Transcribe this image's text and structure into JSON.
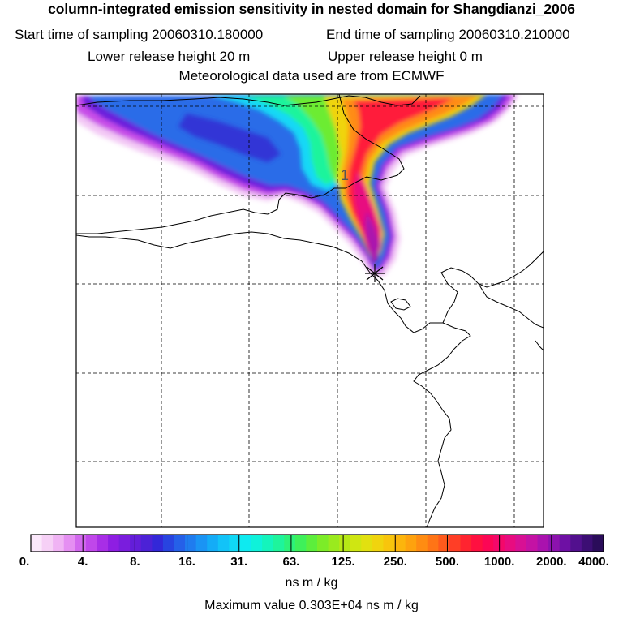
{
  "titles": {
    "line1": "column-integrated emission sensitivity in nested domain for Shangdianzi_2006",
    "start_label": "Start time of sampling 20060310.180000",
    "end_label": "End time of sampling 20060310.210000",
    "lower_label": "Lower release height   20 m",
    "upper_label": "Upper release height    0 m",
    "met_label": "Meteorological data used are from ECMWF"
  },
  "map": {
    "marker_label": "1",
    "colors": {
      "frame": "#000000",
      "coast": "#000000",
      "grid": "#000000"
    }
  },
  "colorbar": {
    "ticks": [
      "0.",
      "4.",
      "8.",
      "16.",
      "31.",
      "63.",
      "125.",
      "250.",
      "500.",
      "1000.",
      "2000.",
      "4000."
    ],
    "swatches": [
      "#fbe8fb",
      "#f6d0f6",
      "#f0b3f4",
      "#e58ff2",
      "#d268ee",
      "#c047ea",
      "#a82ee6",
      "#8e1ee2",
      "#7a1ddd",
      "#631ed9",
      "#4c22d6",
      "#3328d8",
      "#2844e0",
      "#2560e8",
      "#1f7cef",
      "#1a94f4",
      "#14acf7",
      "#12c3f8",
      "#10d8f6",
      "#0eeaf0",
      "#0ff2da",
      "#14f4bc",
      "#1ef49c",
      "#2cf27a",
      "#3ef05a",
      "#5cee3c",
      "#7cec28",
      "#9aea1e",
      "#b6e816",
      "#cfe612",
      "#e2e010",
      "#f0d40e",
      "#f8c50c",
      "#fcb50c",
      "#fea20e",
      "#ff8c12",
      "#ff7416",
      "#ff5a1c",
      "#ff3e26",
      "#ff2430",
      "#ff1040",
      "#fc0655",
      "#f4086a",
      "#e80c80",
      "#d81094",
      "#c412a4",
      "#aa12ae",
      "#8c12ae",
      "#6e10a4",
      "#52108e",
      "#3c0e74",
      "#2a0c5a"
    ],
    "unit": "ns m / kg",
    "max_value": "Maximum value  0.303E+04 ns m / kg"
  }
}
